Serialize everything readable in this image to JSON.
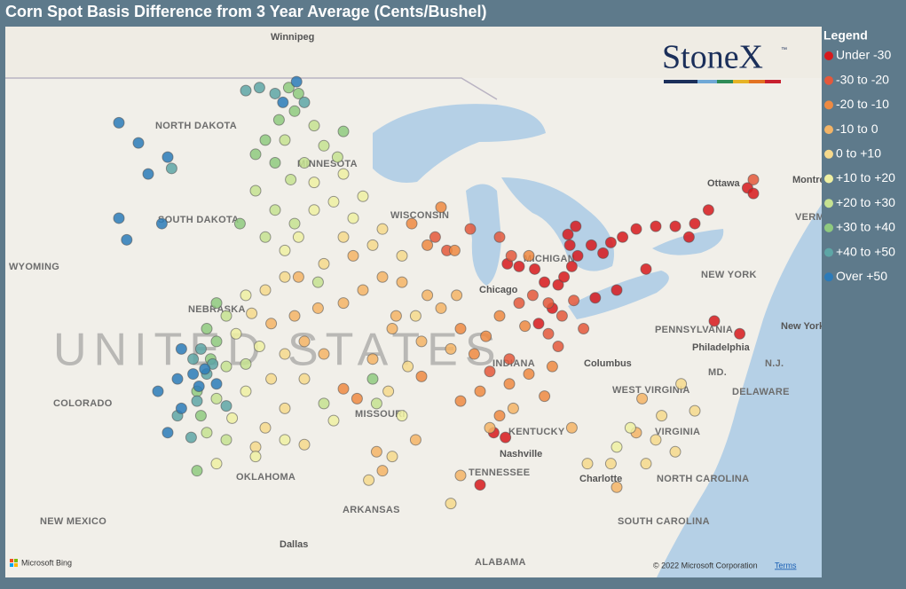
{
  "chart_data": {
    "type": "map",
    "title": "Corn Spot Basis Difference from 3 Year Average (Cents/Bushel)",
    "legend_title": "Legend",
    "bins": [
      {
        "label": "Under -30",
        "color": "#d7191c"
      },
      {
        "label": "-30 to -20",
        "color": "#e4583b"
      },
      {
        "label": "-20 to -10",
        "color": "#ee8a42"
      },
      {
        "label": "-10 to 0",
        "color": "#f4b466"
      },
      {
        "label": "0 to +10",
        "color": "#f6d98c"
      },
      {
        "label": "+10 to +20",
        "color": "#eff0a2"
      },
      {
        "label": "+20 to +30",
        "color": "#c6e291"
      },
      {
        "label": "+30 to +40",
        "color": "#8fca7f"
      },
      {
        "label": "+40 to +50",
        "color": "#5ea6a6"
      },
      {
        "label": "Over +50",
        "color": "#2c7bb9"
      }
    ],
    "points": [
      [
        -83.5,
        41.7,
        0
      ],
      [
        -83.2,
        42.0,
        0
      ],
      [
        -82.8,
        42.4,
        0
      ],
      [
        -82.5,
        42.8,
        0
      ],
      [
        -82.9,
        43.2,
        0
      ],
      [
        -83.0,
        43.6,
        0
      ],
      [
        -82.6,
        43.9,
        0
      ],
      [
        -81.8,
        43.2,
        0
      ],
      [
        -81.2,
        42.9,
        0
      ],
      [
        -80.8,
        43.3,
        0
      ],
      [
        -80.2,
        43.5,
        0
      ],
      [
        -79.5,
        43.8,
        0
      ],
      [
        -78.5,
        43.9,
        0
      ],
      [
        -77.5,
        43.9,
        0
      ],
      [
        -76.8,
        43.5,
        0
      ],
      [
        -76.5,
        44.0,
        0
      ],
      [
        -75.8,
        44.5,
        0
      ],
      [
        -73.8,
        45.3,
        0
      ],
      [
        -73.5,
        45.1,
        0
      ],
      [
        -84.2,
        41.8,
        0
      ],
      [
        -84.7,
        42.3,
        0
      ],
      [
        -85.5,
        42.4,
        0
      ],
      [
        -86.1,
        42.5,
        0
      ],
      [
        -83.8,
        40.8,
        0
      ],
      [
        -81.6,
        41.2,
        0
      ],
      [
        -80.5,
        41.5,
        0
      ],
      [
        -79.0,
        42.3,
        0
      ],
      [
        -75.5,
        40.3,
        0
      ],
      [
        -74.2,
        39.8,
        0
      ],
      [
        -86.8,
        35.8,
        0
      ],
      [
        -86.2,
        35.6,
        0
      ],
      [
        -87.5,
        33.6,
        0
      ],
      [
        -84.5,
        40.2,
        0
      ],
      [
        -84.8,
        41.3,
        1
      ],
      [
        -84.0,
        41.0,
        1
      ],
      [
        -83.3,
        40.5,
        1
      ],
      [
        -82.7,
        41.1,
        1
      ],
      [
        -85.5,
        41.0,
        1
      ],
      [
        -85.9,
        42.8,
        1
      ],
      [
        -86.5,
        43.5,
        1
      ],
      [
        -89.2,
        43.0,
        1
      ],
      [
        -89.8,
        43.5,
        1
      ],
      [
        -84.0,
        39.8,
        1
      ],
      [
        -86.0,
        38.8,
        1
      ],
      [
        -87.0,
        38.3,
        1
      ],
      [
        -83.5,
        39.3,
        1
      ],
      [
        -82.2,
        40.0,
        1
      ],
      [
        -88.0,
        43.8,
        1
      ],
      [
        -73.5,
        45.6,
        1
      ],
      [
        -86.5,
        40.5,
        2
      ],
      [
        -85.2,
        40.1,
        2
      ],
      [
        -87.2,
        39.7,
        2
      ],
      [
        -88.5,
        40.0,
        2
      ],
      [
        -87.8,
        39.0,
        2
      ],
      [
        -88.8,
        43.0,
        2
      ],
      [
        -90.2,
        43.2,
        2
      ],
      [
        -91.0,
        44.0,
        2
      ],
      [
        -89.5,
        44.6,
        2
      ],
      [
        -86.0,
        37.8,
        2
      ],
      [
        -85.0,
        38.2,
        2
      ],
      [
        -87.5,
        37.5,
        2
      ],
      [
        -88.5,
        37.1,
        2
      ],
      [
        -86.5,
        36.5,
        2
      ],
      [
        -93.8,
        37.2,
        2
      ],
      [
        -94.5,
        37.6,
        2
      ],
      [
        -84.2,
        37.3,
        2
      ],
      [
        -90.5,
        38.1,
        2
      ],
      [
        -85.0,
        42.8,
        2
      ],
      [
        -83.8,
        38.5,
        2
      ],
      [
        -89.5,
        40.8,
        3
      ],
      [
        -90.2,
        41.3,
        3
      ],
      [
        -91.5,
        41.8,
        3
      ],
      [
        -92.5,
        42.0,
        3
      ],
      [
        -93.5,
        41.5,
        3
      ],
      [
        -88.7,
        41.3,
        3
      ],
      [
        -89.0,
        39.2,
        3
      ],
      [
        -90.5,
        39.5,
        3
      ],
      [
        -91.8,
        40.5,
        3
      ],
      [
        -94.5,
        41.0,
        3
      ],
      [
        -95.8,
        40.8,
        3
      ],
      [
        -97.0,
        40.5,
        3
      ],
      [
        -98.2,
        40.2,
        3
      ],
      [
        -96.5,
        39.5,
        3
      ],
      [
        -93.0,
        38.8,
        3
      ],
      [
        -92.0,
        40.0,
        3
      ],
      [
        -95.5,
        39.0,
        3
      ],
      [
        -87.0,
        36.0,
        3
      ],
      [
        -85.8,
        36.8,
        3
      ],
      [
        -82.8,
        36.0,
        3
      ],
      [
        -79.2,
        37.2,
        3
      ],
      [
        -79.5,
        35.8,
        3
      ],
      [
        -92.8,
        35.0,
        3
      ],
      [
        -92.5,
        34.2,
        3
      ],
      [
        -90.8,
        35.5,
        3
      ],
      [
        -88.5,
        34.0,
        3
      ],
      [
        -80.5,
        33.5,
        3
      ],
      [
        -94.0,
        42.8,
        3
      ],
      [
        -96.8,
        42.0,
        3
      ],
      [
        -93.0,
        43.2,
        4
      ],
      [
        -94.5,
        43.5,
        4
      ],
      [
        -95.5,
        42.5,
        4
      ],
      [
        -97.5,
        42.0,
        4
      ],
      [
        -98.5,
        41.5,
        4
      ],
      [
        -99.2,
        40.6,
        4
      ],
      [
        -97.5,
        39.0,
        4
      ],
      [
        -98.2,
        38.0,
        4
      ],
      [
        -96.5,
        38.0,
        4
      ],
      [
        -92.5,
        43.8,
        4
      ],
      [
        -91.5,
        42.8,
        4
      ],
      [
        -90.8,
        40.5,
        4
      ],
      [
        -91.2,
        38.5,
        4
      ],
      [
        -92.2,
        37.5,
        4
      ],
      [
        -97.5,
        36.8,
        4
      ],
      [
        -98.5,
        36.0,
        4
      ],
      [
        -99.0,
        35.2,
        4
      ],
      [
        -96.5,
        35.3,
        4
      ],
      [
        -79.0,
        34.5,
        4
      ],
      [
        -78.5,
        35.5,
        4
      ],
      [
        -77.5,
        35.0,
        4
      ],
      [
        -78.2,
        36.5,
        4
      ],
      [
        -77.2,
        37.8,
        4
      ],
      [
        -76.5,
        36.7,
        4
      ],
      [
        -80.8,
        34.5,
        4
      ],
      [
        -82.0,
        34.5,
        4
      ],
      [
        -93.2,
        33.8,
        4
      ],
      [
        -89.0,
        32.8,
        4
      ],
      [
        -92.0,
        34.8,
        4
      ],
      [
        -94.0,
        44.2,
        5
      ],
      [
        -95.0,
        44.8,
        5
      ],
      [
        -96.0,
        44.5,
        5
      ],
      [
        -96.8,
        43.5,
        5
      ],
      [
        -97.5,
        43.0,
        5
      ],
      [
        -99.5,
        41.3,
        5
      ],
      [
        -100.0,
        39.8,
        5
      ],
      [
        -98.8,
        39.3,
        5
      ],
      [
        -99.5,
        37.5,
        5
      ],
      [
        -100.2,
        36.4,
        5
      ],
      [
        -99.0,
        34.8,
        5
      ],
      [
        -97.5,
        35.5,
        5
      ],
      [
        -96.0,
        45.5,
        5
      ],
      [
        -94.5,
        45.8,
        5
      ],
      [
        -93.5,
        45.0,
        5
      ],
      [
        -91.5,
        36.5,
        5
      ],
      [
        -95.0,
        36.3,
        5
      ],
      [
        -79.8,
        36.0,
        5
      ],
      [
        -80.5,
        35.2,
        5
      ],
      [
        -101.0,
        34.5,
        5
      ],
      [
        -96.5,
        46.2,
        6
      ],
      [
        -95.5,
        46.8,
        6
      ],
      [
        -94.8,
        46.4,
        6
      ],
      [
        -97.2,
        45.6,
        6
      ],
      [
        -98.0,
        44.5,
        6
      ],
      [
        -97.0,
        44.0,
        6
      ],
      [
        -99.0,
        45.2,
        6
      ],
      [
        -98.5,
        43.5,
        6
      ],
      [
        -100.5,
        40.5,
        6
      ],
      [
        -100.5,
        38.5,
        6
      ],
      [
        -99.5,
        38.6,
        6
      ],
      [
        -101.0,
        37.2,
        6
      ],
      [
        -100.5,
        35.5,
        6
      ],
      [
        -101.5,
        35.8,
        6
      ],
      [
        -96.0,
        47.5,
        6
      ],
      [
        -97.5,
        47.0,
        6
      ],
      [
        -95.8,
        41.8,
        6
      ],
      [
        -92.8,
        37.0,
        6
      ],
      [
        -95.5,
        37.0,
        6
      ],
      [
        -97.0,
        48.0,
        7
      ],
      [
        -97.8,
        47.7,
        7
      ],
      [
        -98.5,
        47.0,
        7
      ],
      [
        -98.0,
        46.2,
        7
      ],
      [
        -96.8,
        48.6,
        7
      ],
      [
        -97.3,
        48.8,
        7
      ],
      [
        -99.0,
        46.5,
        7
      ],
      [
        -99.8,
        44.0,
        7
      ],
      [
        -101.0,
        41.0,
        7
      ],
      [
        -101.5,
        40.0,
        7
      ],
      [
        -101.3,
        38.8,
        7
      ],
      [
        -101.0,
        39.5,
        7
      ],
      [
        -102.0,
        37.5,
        7
      ],
      [
        -101.8,
        36.5,
        7
      ],
      [
        -102.0,
        34.2,
        7
      ],
      [
        -94.5,
        47.3,
        7
      ],
      [
        -93.0,
        38.0,
        7
      ],
      [
        -98.0,
        48.6,
        8
      ],
      [
        -98.8,
        48.8,
        8
      ],
      [
        -99.5,
        48.7,
        8
      ],
      [
        -101.2,
        38.6,
        8
      ],
      [
        -101.8,
        39.2,
        8
      ],
      [
        -102.2,
        38.8,
        8
      ],
      [
        -101.5,
        38.2,
        8
      ],
      [
        -102.0,
        37.1,
        8
      ],
      [
        -103.0,
        36.5,
        8
      ],
      [
        -102.3,
        35.6,
        8
      ],
      [
        -96.5,
        48.3,
        8
      ],
      [
        -100.5,
        36.9,
        8
      ],
      [
        -103.3,
        46.0,
        8
      ],
      [
        -96.9,
        49.0,
        9
      ],
      [
        -97.6,
        48.3,
        9
      ],
      [
        -101.6,
        38.4,
        9
      ],
      [
        -102.8,
        39.2,
        9
      ],
      [
        -103.0,
        38.0,
        9
      ],
      [
        -101.9,
        37.7,
        9
      ],
      [
        -102.8,
        36.8,
        9
      ],
      [
        -103.5,
        35.8,
        9
      ],
      [
        -104.0,
        37.5,
        9
      ],
      [
        -103.5,
        46.4,
        9
      ],
      [
        -104.5,
        45.8,
        9
      ],
      [
        -103.8,
        44.0,
        9
      ],
      [
        -101.0,
        37.8,
        9
      ],
      [
        -102.2,
        38.2,
        9
      ],
      [
        -106.0,
        47.6,
        9
      ],
      [
        -105.0,
        46.9,
        9
      ],
      [
        -106.0,
        44.2,
        9
      ],
      [
        -105.6,
        43.4,
        9
      ]
    ],
    "map_labels": [
      "Winnipeg",
      "NORTH DAKOTA",
      "MINNESOTA",
      "SOUTH DAKOTA",
      "WYOMING",
      "NEBRASKA",
      "UNITED STATES",
      "COLORADO",
      "MISSOURI",
      "KENTUCKY",
      "TENNESSEE",
      "Nashville",
      "OKLAHOMA",
      "ARKANSAS",
      "NEW MEXICO",
      "Dallas",
      "ALABAMA",
      "Charlotte",
      "SOUTH CAROLINA",
      "NORTH CAROLINA",
      "VIRGINIA",
      "WEST VIRGINIA",
      "Columbus",
      "PENNSYLVANIA",
      "Philadelphia",
      "NEW YORK",
      "New York",
      "Ottawa",
      "Montreal",
      "VERMONT",
      "N.J.",
      "MD.",
      "DELAWARE",
      "Chicago",
      "WISCONSIN",
      "MICHIGAN",
      "INDIANA"
    ],
    "logo": {
      "text": "StoneX",
      "tm": "™"
    },
    "attribution": {
      "provider": "Microsoft Bing",
      "copyright": "© 2022 Microsoft Corporation",
      "terms": "Terms"
    }
  }
}
